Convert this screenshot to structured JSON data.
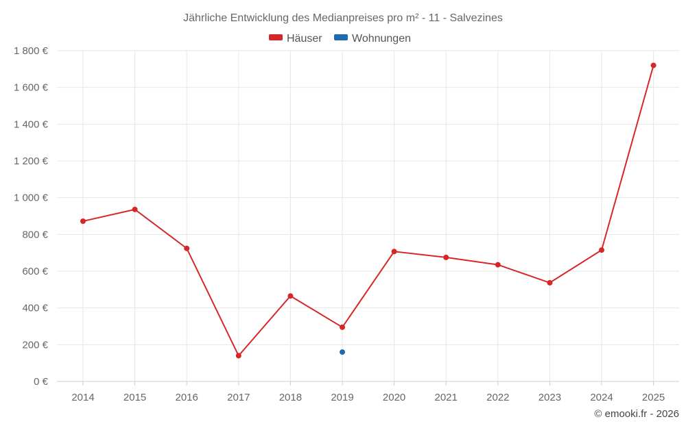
{
  "chart_data": {
    "type": "line",
    "title": "Jährliche Entwicklung des Medianpreises pro m² - 11 - Salvezines",
    "x": [
      "2014",
      "2015",
      "2016",
      "2017",
      "2018",
      "2019",
      "2020",
      "2021",
      "2022",
      "2023",
      "2024",
      "2025"
    ],
    "series": [
      {
        "name": "Häuser",
        "color": "#d62728",
        "values": [
          872,
          936,
          724,
          140,
          465,
          295,
          707,
          675,
          635,
          537,
          715,
          1720
        ]
      },
      {
        "name": "Wohnungen",
        "color": "#1f6bb0",
        "values": [
          null,
          null,
          null,
          null,
          null,
          160,
          null,
          null,
          null,
          null,
          null,
          null
        ]
      }
    ],
    "ylim": [
      0,
      1800
    ],
    "yticks": [
      0,
      200,
      400,
      600,
      800,
      1000,
      1200,
      1400,
      1600,
      1800
    ],
    "ytick_labels": [
      "0 €",
      "200 €",
      "400 €",
      "600 €",
      "800 €",
      "1 000 €",
      "1 200 €",
      "1 400 €",
      "1 600 €",
      "1 800 €"
    ],
    "grid": true,
    "legend_position": "top-center"
  },
  "credit": "© emooki.fr - 2026"
}
